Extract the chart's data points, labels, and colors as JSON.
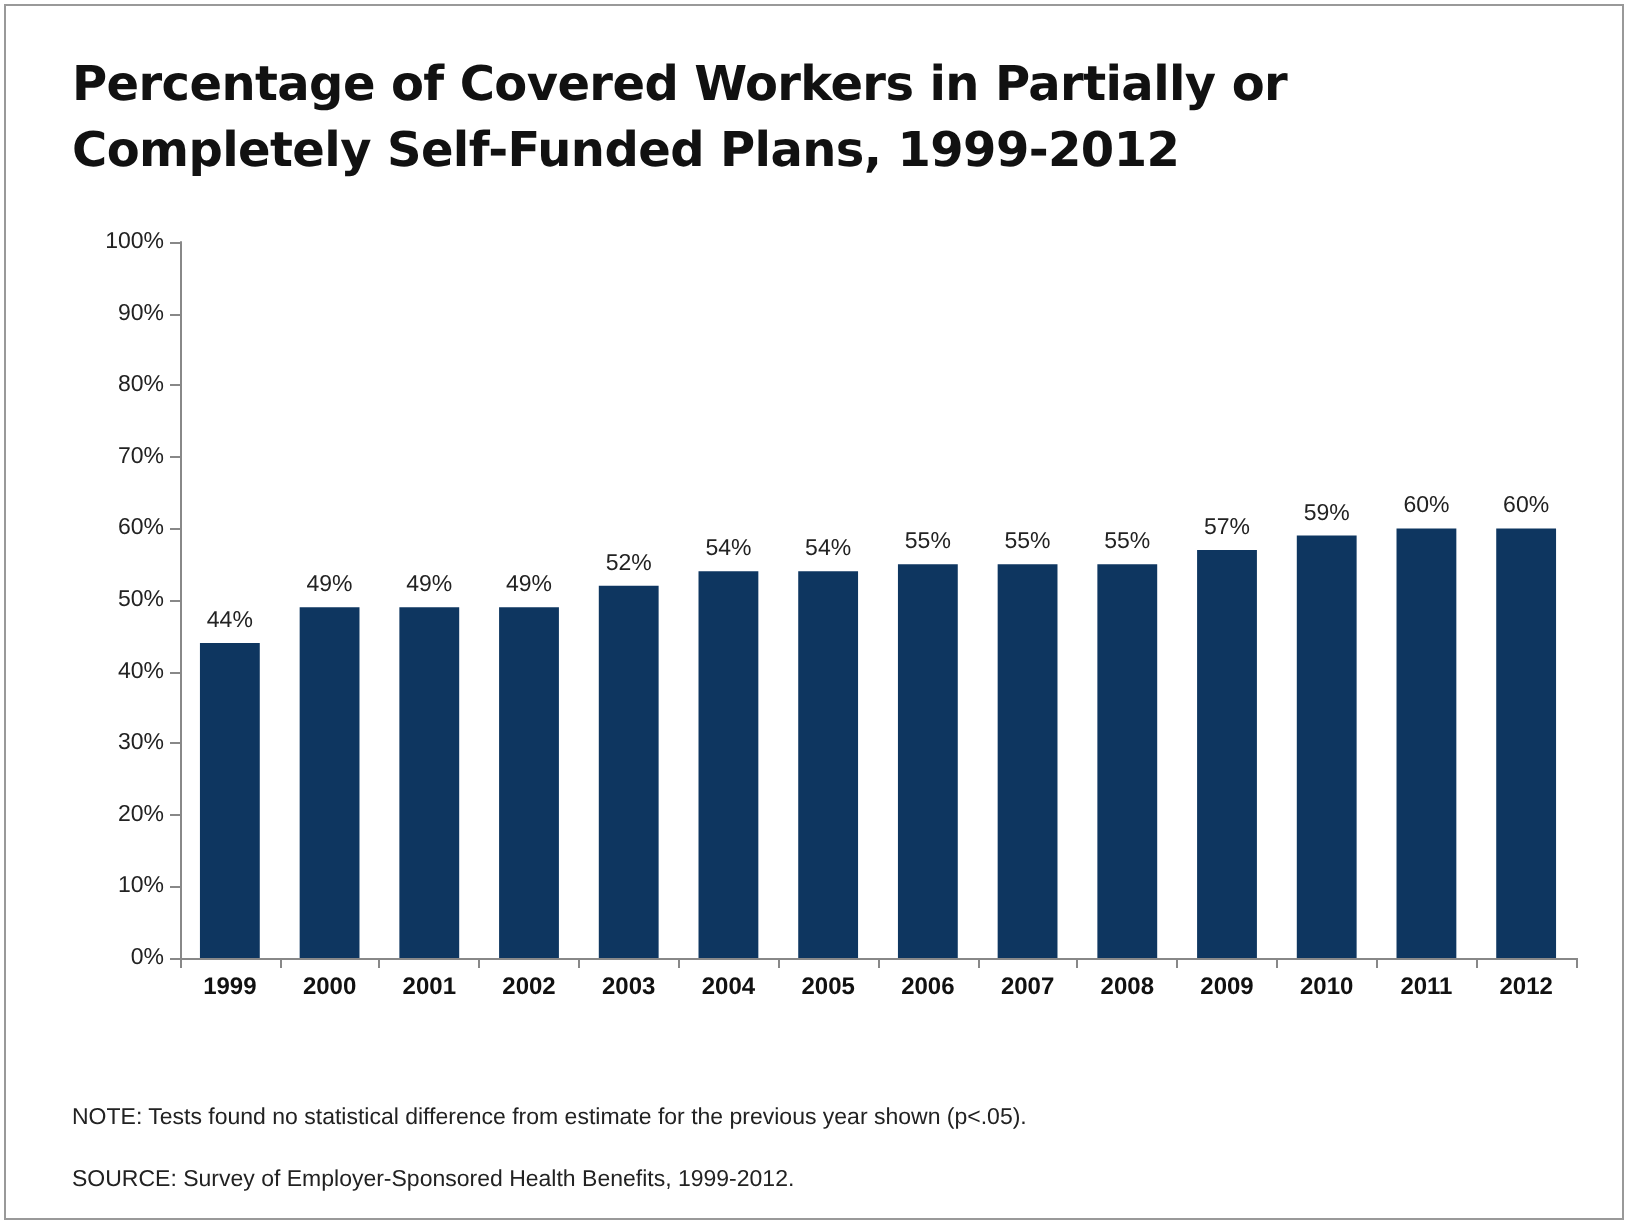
{
  "chart_data": {
    "type": "bar",
    "title": "Percentage of Covered Workers in Partially or Completely Self-Funded Plans, 1999-2012",
    "categories": [
      "1999",
      "2000",
      "2001",
      "2002",
      "2003",
      "2004",
      "2005",
      "2006",
      "2007",
      "2008",
      "2009",
      "2010",
      "2011",
      "2012"
    ],
    "values": [
      44,
      49,
      49,
      49,
      52,
      54,
      54,
      55,
      55,
      55,
      57,
      59,
      60,
      60
    ],
    "color": "#0e3660",
    "ylim": [
      0,
      100
    ],
    "yticks": [
      {
        "value": 0,
        "label": "0%"
      },
      {
        "value": 10,
        "label": "10%"
      },
      {
        "value": 20,
        "label": "20%"
      },
      {
        "value": 30,
        "label": "30%"
      },
      {
        "value": 40,
        "label": "40%"
      },
      {
        "value": 50,
        "label": "50%"
      },
      {
        "value": 60,
        "label": "60%"
      },
      {
        "value": 70,
        "label": "70%"
      },
      {
        "value": 80,
        "label": "80%"
      },
      {
        "value": 90,
        "label": "90%"
      },
      {
        "value": 100,
        "label": "100%"
      }
    ],
    "value_labels": [
      "44%",
      "49%",
      "49%",
      "49%",
      "52%",
      "54%",
      "54%",
      "55%",
      "55%",
      "55%",
      "57%",
      "59%",
      "60%",
      "60%"
    ],
    "grid": false,
    "annotations": [
      "NOTE: Tests found no statistical difference from estimate for the previous year shown (p<.05).",
      "SOURCE: Survey of Employer-Sponsored Health Benefits, 1999-2012."
    ]
  }
}
